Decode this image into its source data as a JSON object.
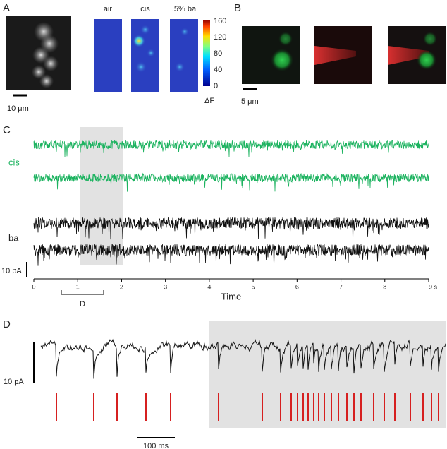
{
  "panel_a": {
    "label": "A",
    "scale_bar": "10 μm",
    "conditions": [
      "air",
      "cis",
      ".5% ba"
    ],
    "colorbar": {
      "ticks": [
        "160",
        "120",
        "80",
        "40",
        "0"
      ],
      "label": "ΔF"
    }
  },
  "panel_b": {
    "label": "B",
    "scale_bar": "5 μm"
  },
  "panel_c": {
    "label": "C",
    "trace_labels": [
      "cis",
      "ba"
    ],
    "scale_bar": "10 pA",
    "time_ticks": [
      "0",
      "1",
      "2",
      "3",
      "4",
      "5",
      "6",
      "7",
      "8",
      "9 s"
    ],
    "x_label": "Time",
    "bracket_label": "D"
  },
  "panel_d": {
    "label": "D",
    "scale_bar_y": "10 pA",
    "scale_bar_x": "100 ms"
  }
}
